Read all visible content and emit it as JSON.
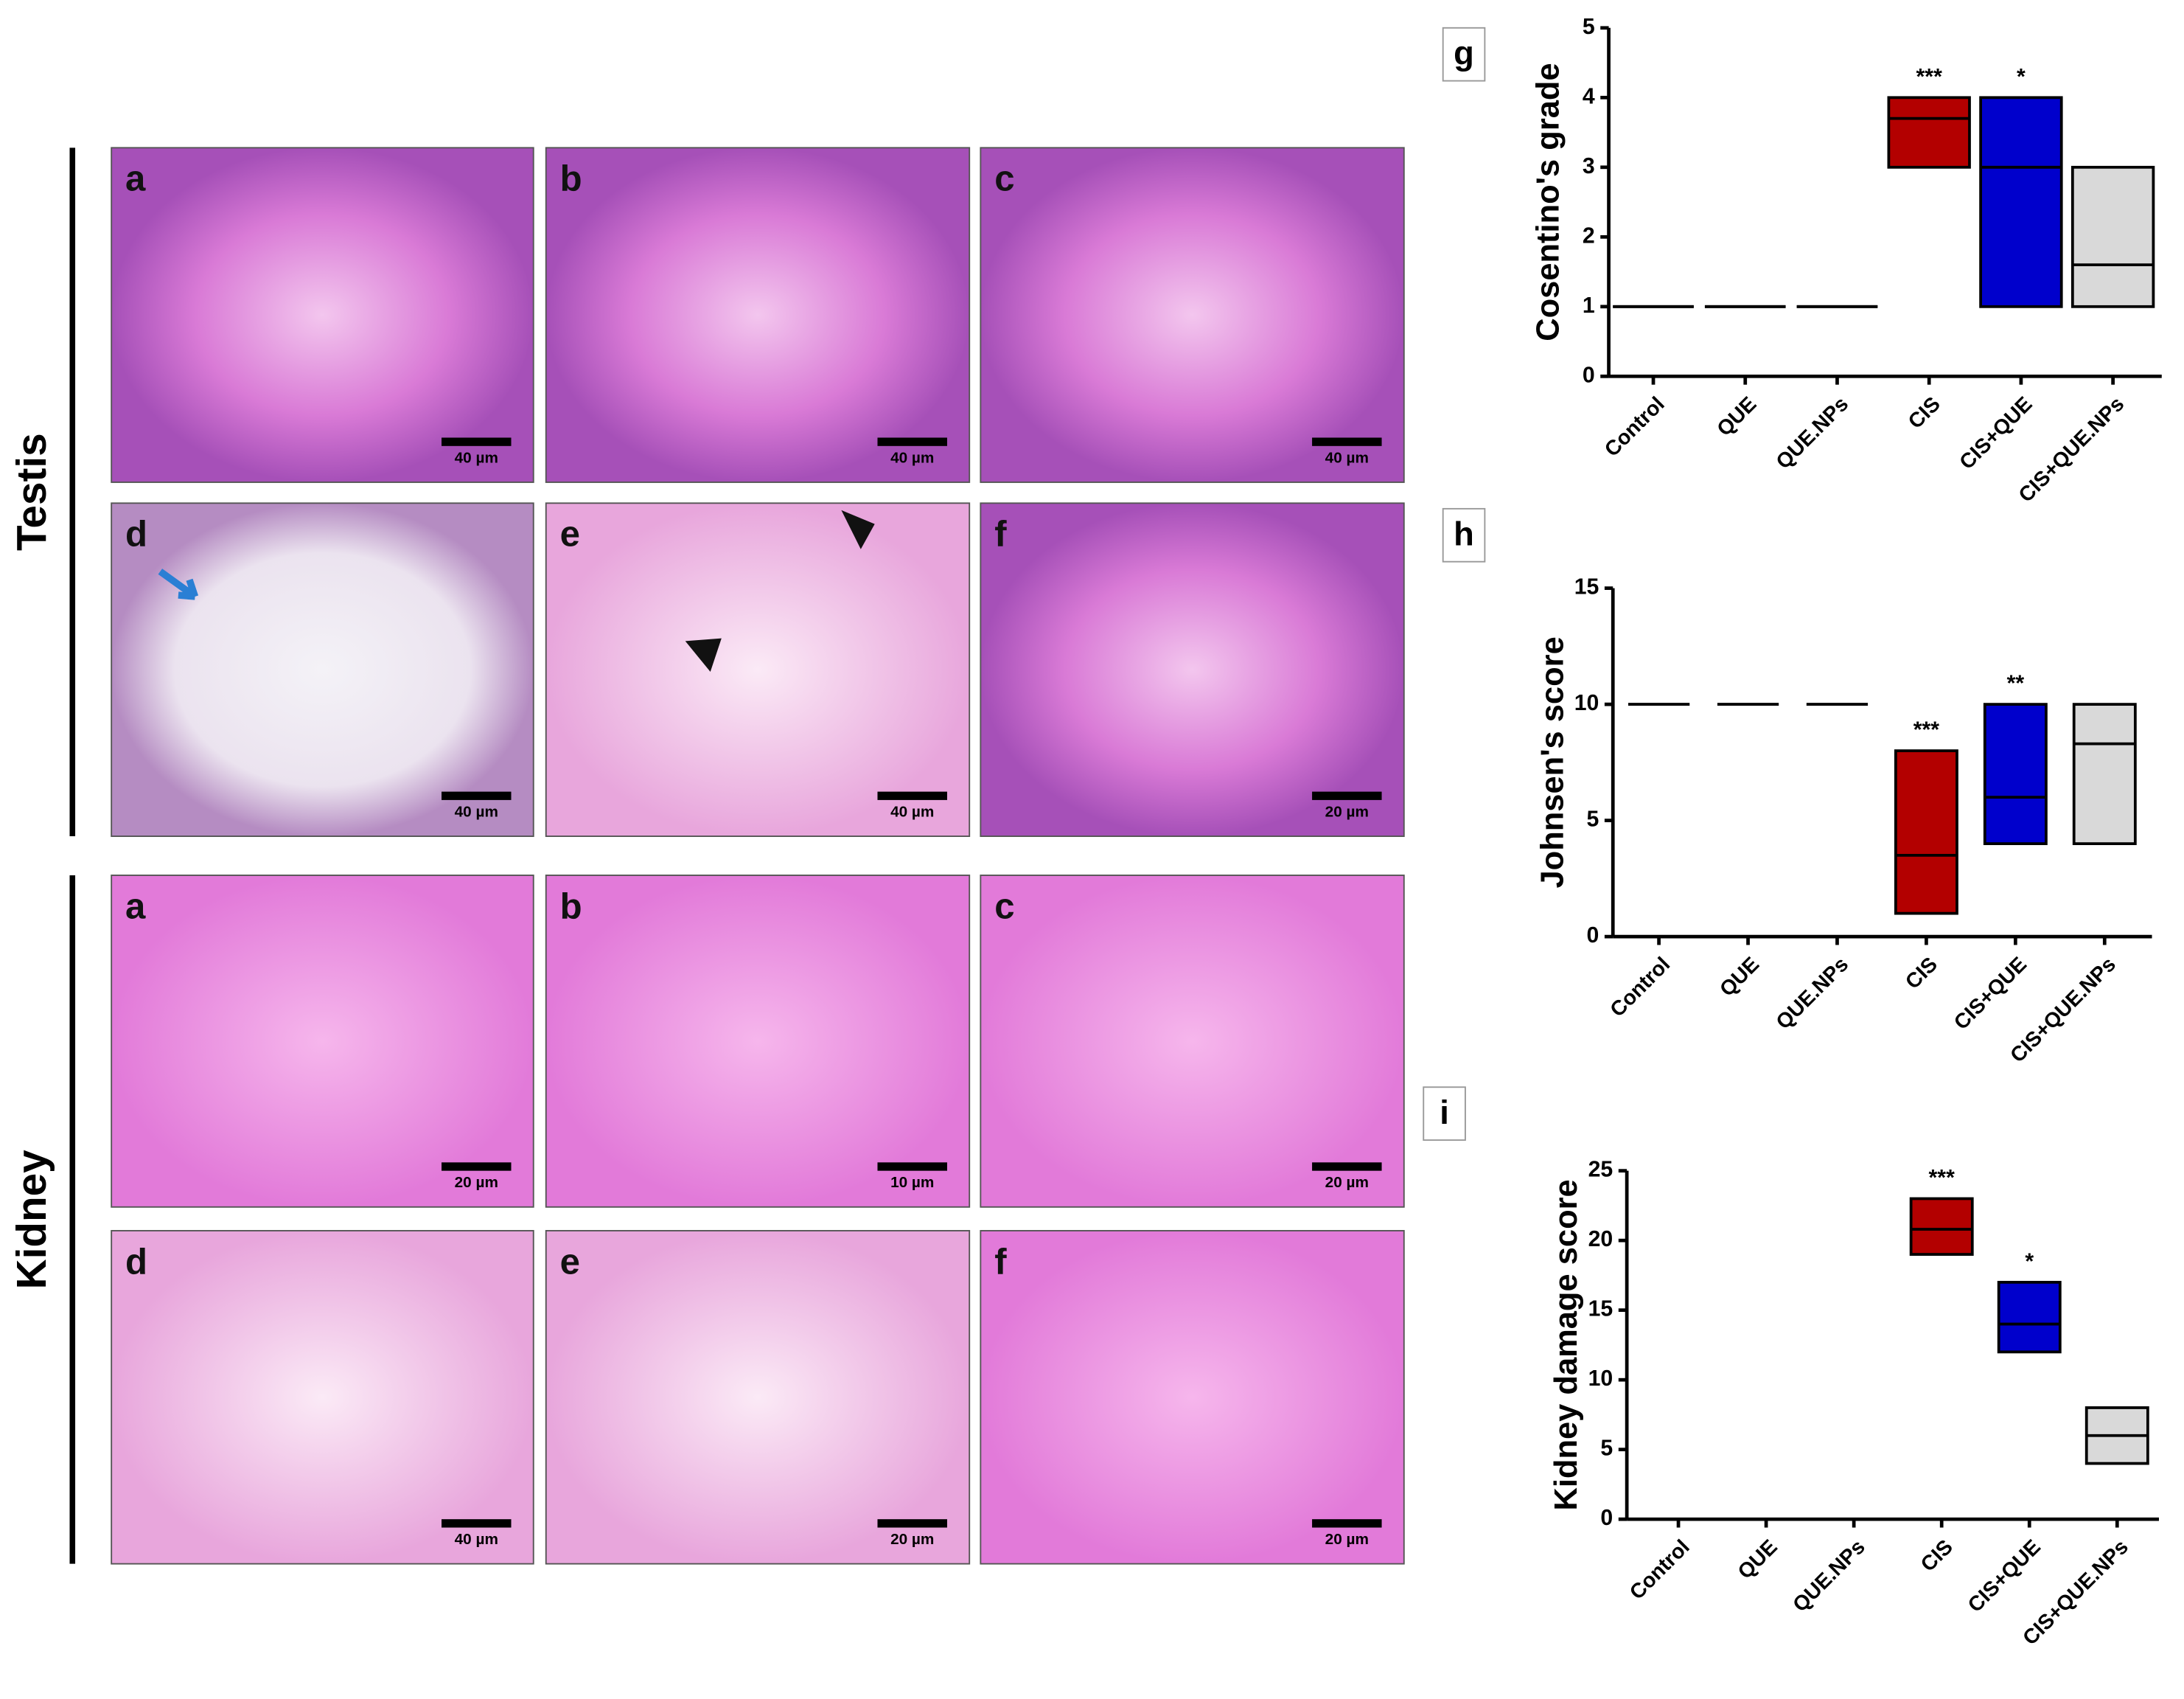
{
  "figure": {
    "row_labels": [
      "Testis",
      "Kidney"
    ],
    "panel_labels": [
      [
        "a",
        "b",
        "c",
        "d",
        "e",
        "f"
      ],
      [
        "a",
        "b",
        "c",
        "d",
        "e",
        "f"
      ]
    ],
    "scale_bars": [
      [
        "40 µm",
        "40 µm",
        "40 µm",
        "40 µm",
        "40 µm",
        "20 µm"
      ],
      [
        "20 µm",
        "10 µm",
        "20 µm",
        "40 µm",
        "20 µm",
        "20 µm"
      ]
    ]
  },
  "chart_data": [
    {
      "type": "box",
      "panel_label": "g",
      "ylabel": "Cosentino's grade",
      "categories": [
        "Control",
        "QUE",
        "QUE.NPs",
        "CIS",
        "CIS+QUE",
        "CIS+QUE.NPs"
      ],
      "low": [
        1,
        1,
        1,
        3,
        1,
        1
      ],
      "median": [
        1,
        1,
        1,
        3.7,
        3,
        1.6
      ],
      "high": [
        1,
        1,
        1,
        4,
        4,
        3
      ],
      "annotations": [
        null,
        null,
        null,
        "***",
        "*",
        null
      ],
      "colors": [
        "#000000",
        "#000000",
        "#000000",
        "#b30000",
        "#0000cc",
        "#d9d9d9"
      ],
      "ylim": [
        0,
        5
      ],
      "yticks": [
        0,
        1,
        2,
        3,
        4,
        5
      ]
    },
    {
      "type": "box",
      "panel_label": "h",
      "ylabel": "Johnsen's score",
      "categories": [
        "Control",
        "QUE",
        "QUE.NPs",
        "CIS",
        "CIS+QUE",
        "CIS+QUE.NPs"
      ],
      "low": [
        10,
        10,
        10,
        1,
        4,
        4
      ],
      "median": [
        10,
        10,
        10,
        3.5,
        6,
        8.3
      ],
      "high": [
        10,
        10,
        10,
        8,
        10,
        10
      ],
      "annotations": [
        null,
        null,
        null,
        "***",
        "**",
        null
      ],
      "colors": [
        "#000000",
        "#000000",
        "#000000",
        "#b30000",
        "#0000cc",
        "#d9d9d9"
      ],
      "ylim": [
        0,
        15
      ],
      "yticks": [
        0,
        5,
        10,
        15
      ]
    },
    {
      "type": "box",
      "panel_label": "i",
      "ylabel": "Kidney damage score",
      "categories": [
        "Control",
        "QUE",
        "QUE.NPs",
        "CIS",
        "CIS+QUE",
        "CIS+QUE.NPs"
      ],
      "low": [
        null,
        null,
        null,
        19,
        12,
        4
      ],
      "median": [
        null,
        null,
        null,
        20.8,
        14,
        6
      ],
      "high": [
        null,
        null,
        null,
        23,
        17,
        8
      ],
      "annotations": [
        null,
        null,
        null,
        "***",
        "*",
        null
      ],
      "colors": [
        "#000000",
        "#000000",
        "#000000",
        "#b30000",
        "#0000cc",
        "#d9d9d9"
      ],
      "ylim": [
        0,
        25
      ],
      "yticks": [
        0,
        5,
        10,
        15,
        20,
        25
      ]
    }
  ]
}
